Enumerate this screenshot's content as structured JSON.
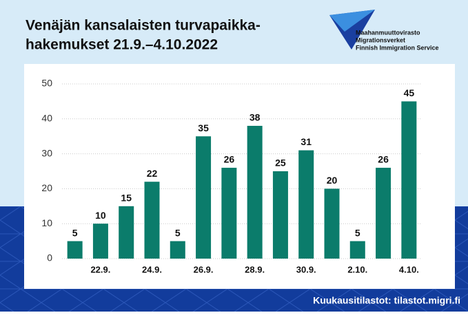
{
  "chart_data": {
    "type": "bar",
    "title": [
      "Venäjän kansalaisten turvapaikka-",
      "hakemukset 21.9.–4.10.2022"
    ],
    "categories": [
      null,
      "22.9.",
      null,
      "24.9.",
      null,
      "26.9.",
      null,
      "28.9.",
      null,
      "30.9.",
      null,
      "2.10.",
      null,
      "4.10."
    ],
    "values": [
      5,
      10,
      15,
      22,
      5,
      35,
      26,
      38,
      25,
      31,
      20,
      5,
      26,
      45
    ],
    "color": "#0b7c6b",
    "ylim": [
      0,
      50
    ],
    "yticks": [
      0,
      10,
      20,
      30,
      40,
      50
    ],
    "grid": true
  },
  "logo": [
    "Maahanmuuttovirasto",
    "Migrationsverket",
    "Finnish Immigration Service"
  ],
  "footer": "Kuukausitilastot: tilastot.migri.fi"
}
